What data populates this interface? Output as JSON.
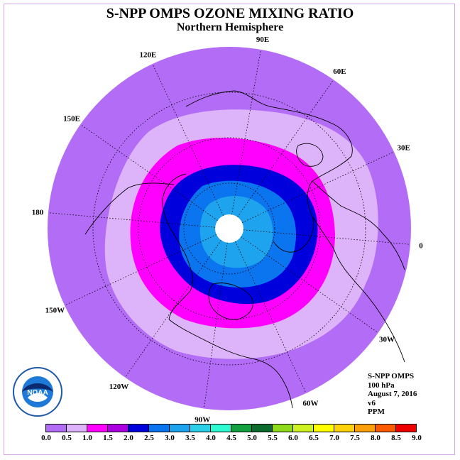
{
  "title": "S-NPP OMPS OZONE MIXING RATIO",
  "subtitle": "Northern Hemisphere",
  "longitude_labels": [
    "90E",
    "60E",
    "30E",
    "0",
    "30W",
    "60W",
    "90W",
    "120W",
    "150W",
    "180",
    "150E",
    "120E"
  ],
  "info": {
    "line1": "S-NPP OMPS",
    "line2": "100 hPa",
    "line3": "August 7, 2016",
    "line4": "v6",
    "line5": "PPM"
  },
  "logo_text": "NOAA",
  "colorbar": {
    "labels": [
      "0.0",
      "0.5",
      "1.0",
      "1.5",
      "2.0",
      "2.5",
      "3.0",
      "3.5",
      "4.0",
      "4.5",
      "5.0",
      "5.5",
      "6.0",
      "6.5",
      "7.0",
      "7.5",
      "8.0",
      "8.5",
      "9.0"
    ],
    "colors": [
      "#b36cf5",
      "#ddb3fa",
      "#ff00ff",
      "#ac00e0",
      "#0000dd",
      "#0a75ee",
      "#1ea3ef",
      "#2ccfe8",
      "#2ffbd2",
      "#13a040",
      "#0b6b2c",
      "#8fda1b",
      "#cdf21f",
      "#ffff00",
      "#fcd20a",
      "#fba00a",
      "#fa5a00",
      "#ee0000",
      "#8b5a36"
    ]
  },
  "zones": {
    "outer": "#b36cf5",
    "band_05": "#ddb3fa",
    "band_10": "#ff00ff",
    "band_15": "#0000dd",
    "band_20": "#0a75ee",
    "band_25": "#1ea3ef",
    "pole": "#ffffff"
  }
}
